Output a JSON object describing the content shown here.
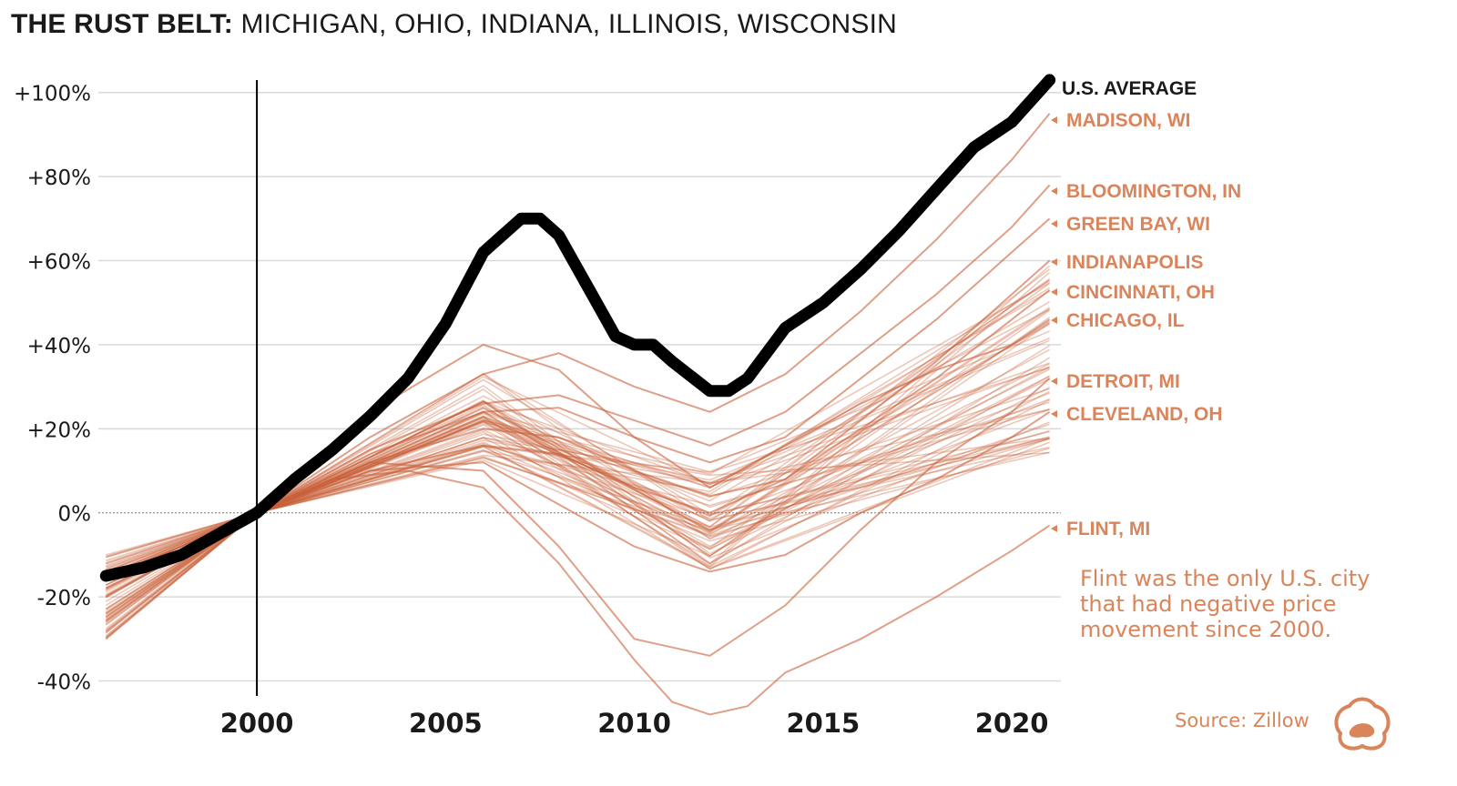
{
  "title": {
    "bold": "THE RUST BELT:",
    "rest": "MICHIGAN, OHIO, INDIANA, ILLINOIS, WISCONSIN"
  },
  "colors": {
    "city_line": "#c9603a",
    "city_label": "#d9845a",
    "us_line": "#000000",
    "grid": "#d9d9d9"
  },
  "note": "Flint was the only U.S. city that had negative price movement since 2000.",
  "source": "Source: Zillow",
  "logo_icon": "visual-capitalist-logo-icon",
  "chart_data": {
    "type": "line",
    "title": "THE RUST BELT: MICHIGAN, OHIO, INDIANA, ILLINOIS, WISCONSIN",
    "xlabel": "",
    "ylabel": "",
    "xlim": [
      1995.8,
      2021.3
    ],
    "ylim": [
      -44,
      106
    ],
    "x_ticks": [
      2000,
      2005,
      2010,
      2015,
      2020
    ],
    "y_ticks": [
      100,
      80,
      60,
      40,
      20,
      0,
      -20,
      -40
    ],
    "y_tick_labels": [
      "+100%",
      "+80%",
      "+60%",
      "+40%",
      "+20%",
      "0%",
      "-20%",
      "-40%"
    ],
    "reference_line_x": 2000,
    "reference_line_y": 0,
    "grid": true,
    "us_average": {
      "name": "U.S. AVERAGE",
      "x": [
        1996,
        1997,
        1998,
        1999,
        2000,
        2001,
        2002,
        2003,
        2004,
        2005,
        2006,
        2007,
        2007.5,
        2008,
        2009,
        2009.5,
        2010,
        2010.5,
        2011,
        2012,
        2012.5,
        2013,
        2014,
        2015,
        2016,
        2017,
        2018,
        2019,
        2020,
        2021
      ],
      "values": [
        -15,
        -13,
        -10,
        -5,
        0,
        8,
        15,
        23,
        32,
        45,
        62,
        70,
        70,
        66,
        50,
        42,
        40,
        40,
        36,
        29,
        29,
        32,
        44,
        50,
        58,
        67,
        77,
        87,
        93,
        103
      ]
    },
    "series_labeled": [
      {
        "name": "MADISON, WI",
        "end_value": 95,
        "x": [
          1996,
          1998,
          2000,
          2003,
          2006,
          2008,
          2010,
          2012,
          2014,
          2016,
          2018,
          2020,
          2021
        ],
        "values": [
          -18,
          -9,
          0,
          18,
          33,
          38,
          30,
          24,
          33,
          48,
          65,
          84,
          95
        ]
      },
      {
        "name": "BLOOMINGTON, IN",
        "end_value": 78,
        "x": [
          1996,
          1998,
          2000,
          2003,
          2006,
          2008,
          2010,
          2012,
          2014,
          2016,
          2018,
          2020,
          2021
        ],
        "values": [
          -15,
          -8,
          0,
          15,
          26,
          28,
          22,
          16,
          24,
          38,
          52,
          68,
          78
        ]
      },
      {
        "name": "GREEN BAY, WI",
        "end_value": 70,
        "x": [
          1996,
          1998,
          2000,
          2003,
          2006,
          2008,
          2010,
          2012,
          2014,
          2016,
          2018,
          2020,
          2021
        ],
        "values": [
          -20,
          -10,
          0,
          14,
          24,
          25,
          18,
          12,
          18,
          32,
          46,
          62,
          70
        ]
      },
      {
        "name": "INDIANAPOLIS",
        "end_value": 60,
        "x": [
          1996,
          1998,
          2000,
          2003,
          2006,
          2008,
          2010,
          2012,
          2014,
          2016,
          2018,
          2020,
          2021
        ],
        "values": [
          -14,
          -7,
          0,
          10,
          16,
          14,
          6,
          0,
          8,
          22,
          36,
          52,
          60
        ]
      },
      {
        "name": "CINCINNATI, OH",
        "end_value": 53,
        "x": [
          1996,
          1998,
          2000,
          2003,
          2006,
          2008,
          2010,
          2012,
          2014,
          2016,
          2018,
          2020,
          2021
        ],
        "values": [
          -16,
          -8,
          0,
          12,
          20,
          18,
          10,
          4,
          8,
          20,
          32,
          46,
          53
        ]
      },
      {
        "name": "CHICAGO, IL",
        "end_value": 46,
        "x": [
          1996,
          1998,
          2000,
          2003,
          2006,
          2008,
          2010,
          2012,
          2014,
          2016,
          2018,
          2020,
          2021
        ],
        "values": [
          -26,
          -13,
          0,
          24,
          40,
          34,
          18,
          6,
          16,
          26,
          34,
          40,
          46
        ]
      },
      {
        "name": "DETROIT, MI",
        "end_value": 32,
        "x": [
          1996,
          1998,
          2000,
          2003,
          2006,
          2008,
          2010,
          2012,
          2014,
          2016,
          2018,
          2020,
          2021
        ],
        "values": [
          -24,
          -12,
          0,
          12,
          10,
          -8,
          -30,
          -34,
          -22,
          -4,
          12,
          24,
          32
        ]
      },
      {
        "name": "CLEVELAND, OH",
        "end_value": 24,
        "x": [
          1996,
          1998,
          2000,
          2003,
          2006,
          2008,
          2010,
          2012,
          2014,
          2016,
          2018,
          2020,
          2021
        ],
        "values": [
          -16,
          -8,
          0,
          10,
          12,
          2,
          -8,
          -14,
          -10,
          0,
          8,
          18,
          24
        ]
      },
      {
        "name": "FLINT, MI",
        "end_value": -3,
        "x": [
          1996,
          1998,
          2000,
          2002,
          2004,
          2006,
          2008,
          2010,
          2011,
          2012,
          2013,
          2014,
          2016,
          2018,
          2020,
          2021
        ],
        "values": [
          -30,
          -15,
          0,
          8,
          10,
          6,
          -12,
          -35,
          -45,
          -48,
          -46,
          -38,
          -30,
          -20,
          -9,
          -3
        ]
      }
    ]
  }
}
